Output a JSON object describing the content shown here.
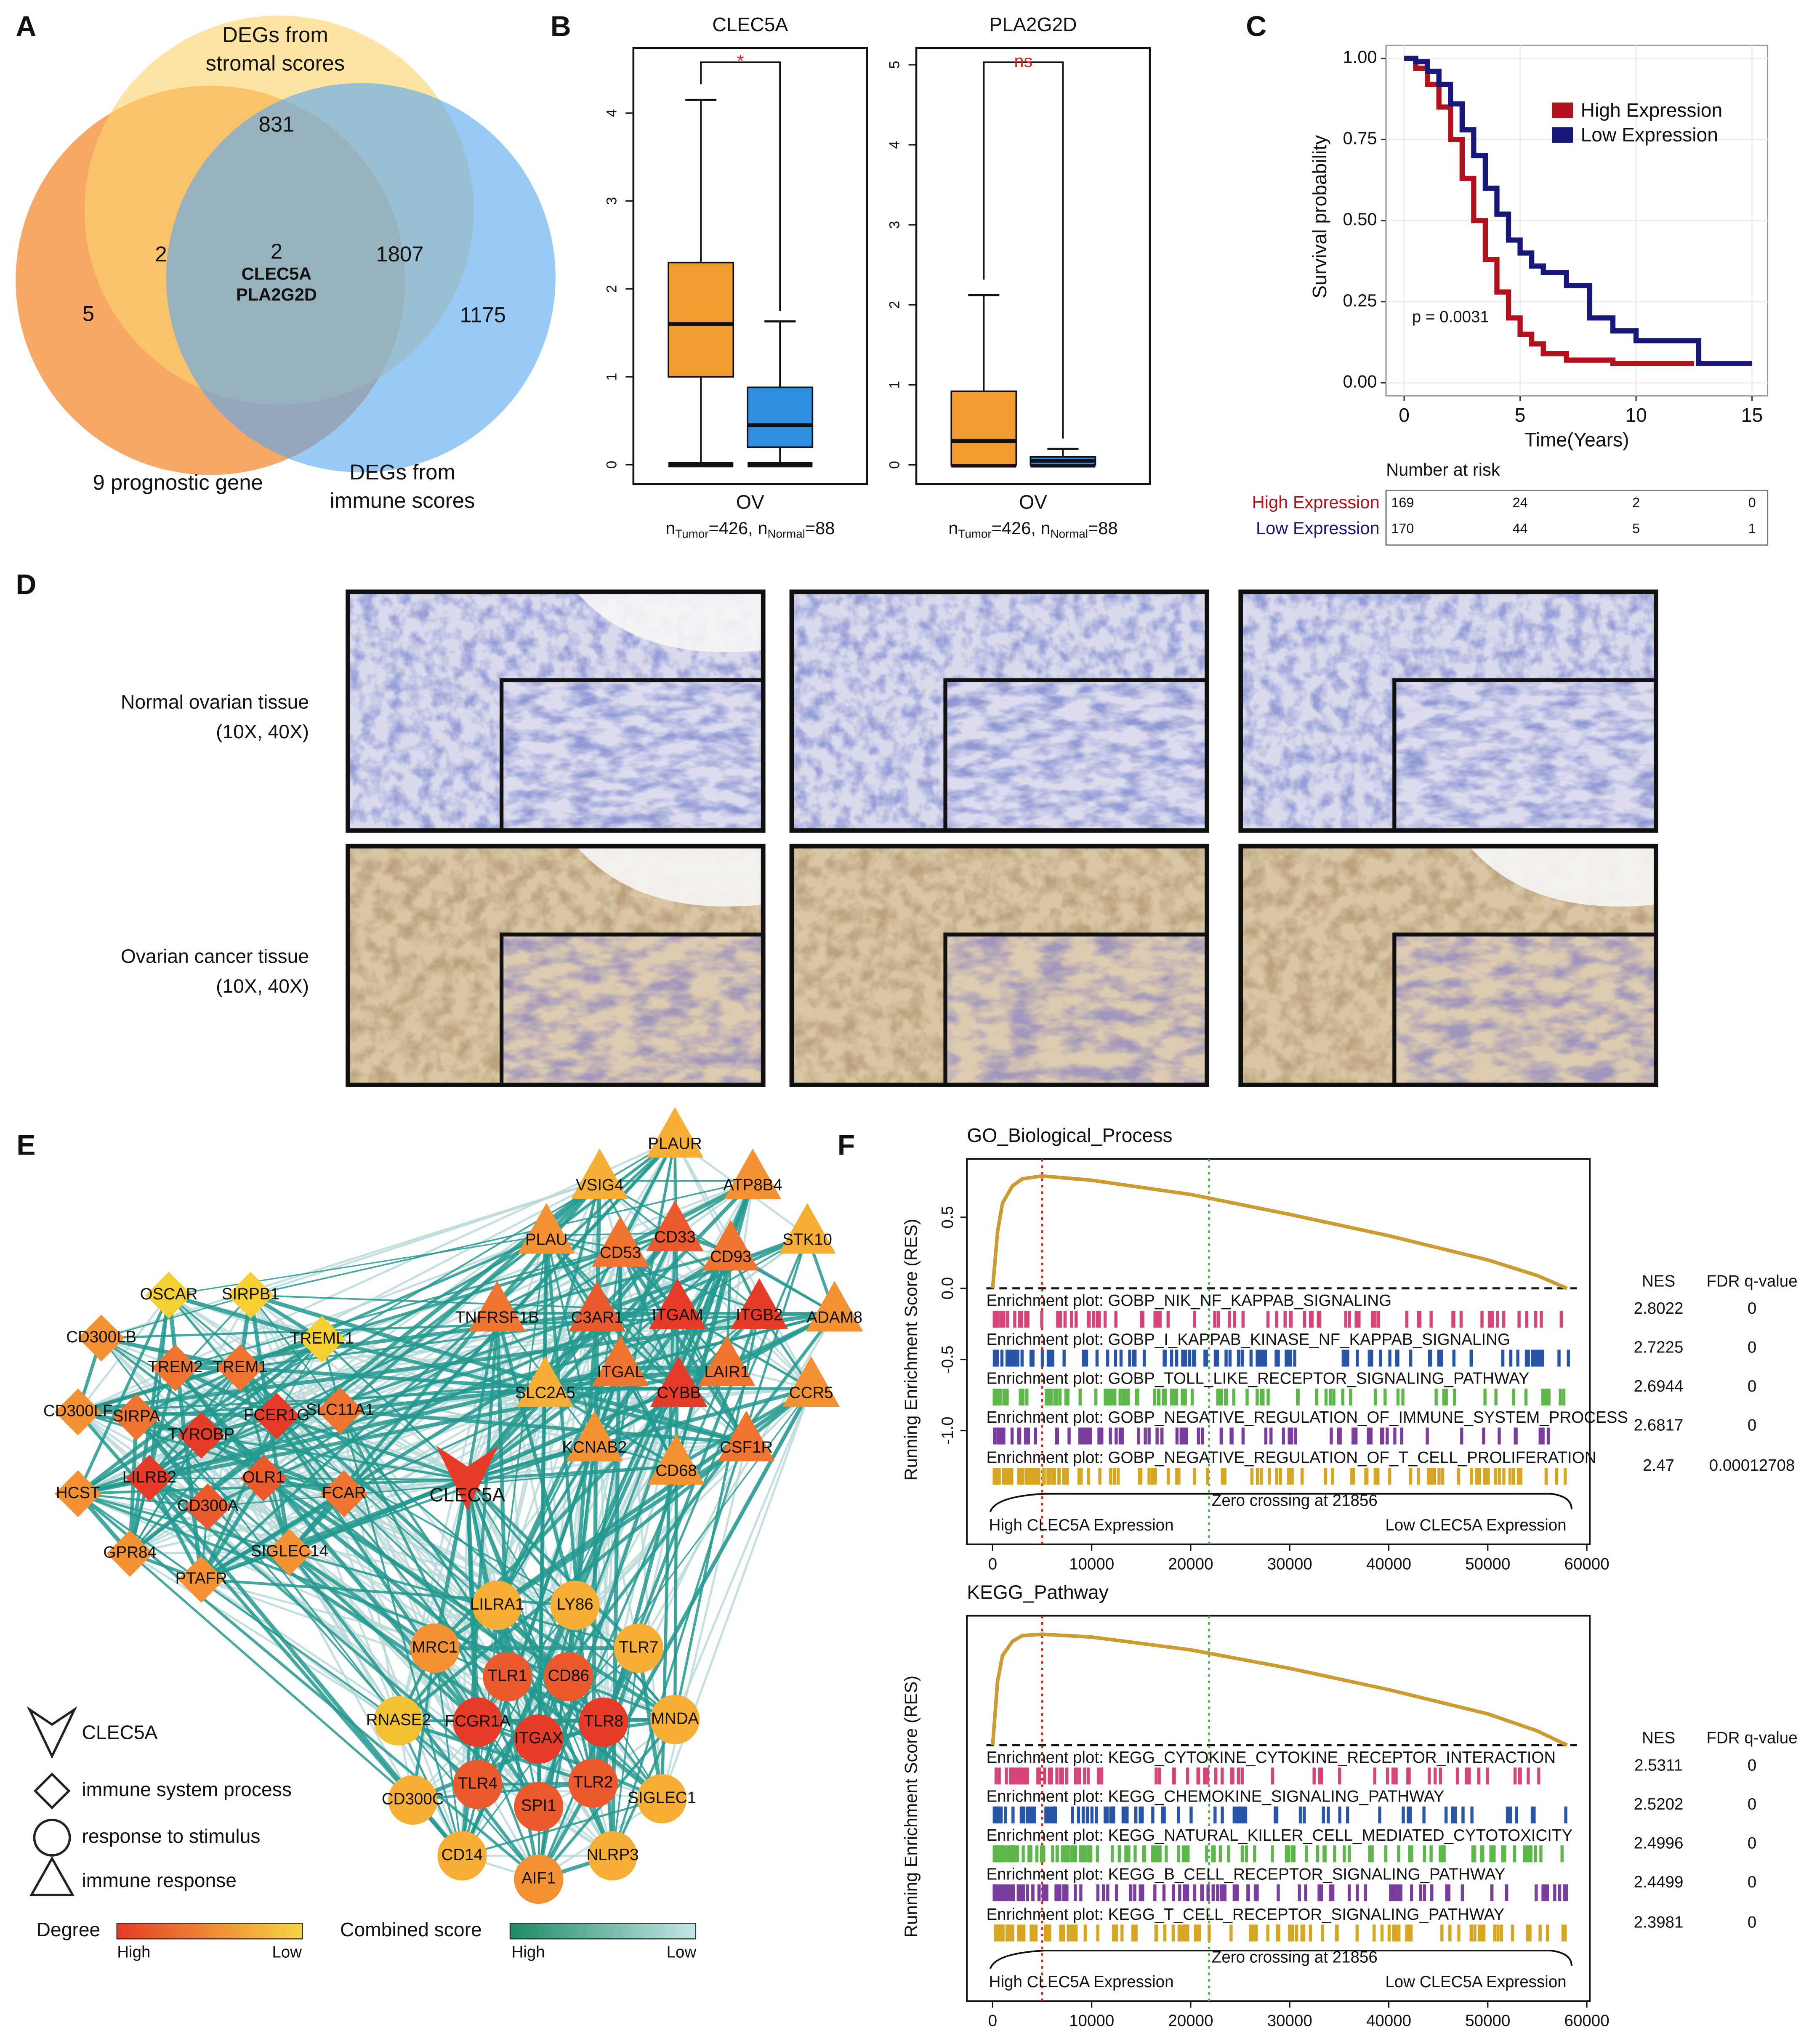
{
  "panel_labels": [
    "A",
    "B",
    "C",
    "D",
    "E",
    "F"
  ],
  "venn": {
    "sets": [
      {
        "label_lines": [
          "9 prognostic gene"
        ],
        "color": "#f7a25e"
      },
      {
        "label_lines": [
          "DEGs from",
          "stromal scores"
        ],
        "color": "#fbd36a"
      },
      {
        "label_lines": [
          "DEGs from",
          "immune scores"
        ],
        "color": "#5aa8ef"
      }
    ],
    "regions": [
      "831",
      "2",
      "2",
      "5",
      "1807",
      "1175"
    ],
    "shared_genes": [
      "CLEC5A",
      "PLA2G2D"
    ]
  },
  "boxplots": [
    {
      "type": "box",
      "title": "CLEC5A",
      "ylim": [
        -0.22,
        4.74
      ],
      "yticks": [
        0,
        1,
        2,
        3,
        4
      ],
      "group": "OV",
      "n_label": [
        "n",
        "Tumor",
        "=426, n",
        "Normal",
        "=88"
      ],
      "significance": "*",
      "boxes": [
        {
          "min": 0,
          "q1": 1.0,
          "median": 1.6,
          "q3": 2.3,
          "max": 4.15,
          "color": "#f29b2e"
        },
        {
          "min": 0,
          "q1": 0.2,
          "median": 0.45,
          "q3": 0.88,
          "max": 1.63,
          "color": "#2f8fe0"
        }
      ]
    },
    {
      "type": "box",
      "title": "PLA2G2D",
      "ylim": [
        -0.24,
        5.21
      ],
      "yticks": [
        0,
        1,
        2,
        3,
        4,
        5
      ],
      "group": "OV",
      "n_label": [
        "n",
        "Tumor",
        "=426, n",
        "Normal",
        "=88"
      ],
      "significance": "ns",
      "boxes": [
        {
          "min": 0,
          "q1": 0,
          "median": 0.3,
          "q3": 0.92,
          "max": 2.12,
          "color": "#f29b2e"
        },
        {
          "min": 0,
          "q1": 0,
          "median": 0.05,
          "q3": 0.1,
          "max": 0.2,
          "color": "#2f8fe0"
        }
      ]
    }
  ],
  "survival": {
    "type": "line",
    "xlabel": "Time(Years)",
    "ylabel": "Survival probability",
    "xlim": [
      -0.78,
      15.67
    ],
    "ylim": [
      -0.04,
      1.04
    ],
    "xticks": [
      0,
      5,
      10,
      15
    ],
    "yticks": [
      {
        "value": 0,
        "label": "0.00"
      },
      {
        "value": 0.25,
        "label": "0.25"
      },
      {
        "value": 0.5,
        "label": "0.50"
      },
      {
        "value": 0.75,
        "label": "0.75"
      },
      {
        "value": 1,
        "label": "1.00"
      }
    ],
    "grid": true,
    "p_label": "p = 0.0031",
    "series": [
      {
        "name": "High Expression",
        "color": "#b3121d",
        "x": [
          0,
          0.5,
          1,
          1.5,
          2,
          2.5,
          3,
          3.5,
          4,
          4.5,
          5,
          5.5,
          6,
          7,
          8,
          9,
          10,
          12.5
        ],
        "y": [
          1,
          0.97,
          0.92,
          0.85,
          0.75,
          0.63,
          0.5,
          0.38,
          0.28,
          0.2,
          0.15,
          0.12,
          0.09,
          0.07,
          0.07,
          0.06,
          0.06,
          0.06
        ]
      },
      {
        "name": "Low Expression",
        "color": "#18187a",
        "x": [
          0,
          0.5,
          1,
          1.5,
          2,
          2.5,
          3,
          3.5,
          4,
          4.5,
          5,
          5.5,
          6,
          7,
          8,
          9,
          10,
          12,
          12.7,
          15
        ],
        "y": [
          1,
          0.99,
          0.96,
          0.92,
          0.86,
          0.78,
          0.7,
          0.6,
          0.52,
          0.44,
          0.4,
          0.36,
          0.34,
          0.3,
          0.2,
          0.16,
          0.13,
          0.13,
          0.06,
          0.06
        ]
      }
    ],
    "risk_table": {
      "title": "Number at risk",
      "rows": [
        [
          169,
          24,
          2,
          0
        ],
        [
          170,
          44,
          5,
          1
        ]
      ]
    }
  },
  "ihc": {
    "rows": [
      {
        "label": "Normal ovarian tissue",
        "magnification": "(10X, 40X)"
      },
      {
        "label": "Ovarian cancer tissue",
        "magnification": "(10X, 40X)"
      }
    ]
  },
  "network": {
    "nodes": [
      {
        "label": "OSCAR",
        "shape": "diamond",
        "color": "#f5d033"
      },
      {
        "label": "SIRPB1",
        "shape": "diamond",
        "color": "#f5d033"
      },
      {
        "label": "TREML1",
        "shape": "diamond",
        "color": "#f5d033"
      },
      {
        "label": "CD300LB",
        "shape": "diamond",
        "color": "#f39133"
      },
      {
        "label": "TREM2",
        "shape": "diamond",
        "color": "#ef7430"
      },
      {
        "label": "TREM1",
        "shape": "diamond",
        "color": "#ef7430"
      },
      {
        "label": "CD300LF",
        "shape": "diamond",
        "color": "#f39133"
      },
      {
        "label": "SIRPA",
        "shape": "diamond",
        "color": "#ef7430"
      },
      {
        "label": "TYROBP",
        "shape": "diamond",
        "color": "#e63b26"
      },
      {
        "label": "FCER1G",
        "shape": "diamond",
        "color": "#e63b26"
      },
      {
        "label": "SLC11A1",
        "shape": "diamond",
        "color": "#ef7430"
      },
      {
        "label": "HCST",
        "shape": "diamond",
        "color": "#f39133"
      },
      {
        "label": "LILRB2",
        "shape": "diamond",
        "color": "#e63b26"
      },
      {
        "label": "OLR1",
        "shape": "diamond",
        "color": "#ea5a2c"
      },
      {
        "label": "CD300A",
        "shape": "diamond",
        "color": "#ea5a2c"
      },
      {
        "label": "FCAR",
        "shape": "diamond",
        "color": "#ef7430"
      },
      {
        "label": "GPR84",
        "shape": "diamond",
        "color": "#f39133"
      },
      {
        "label": "SIGLEC14",
        "shape": "diamond",
        "color": "#f39133"
      },
      {
        "label": "PTAFR",
        "shape": "diamond",
        "color": "#f39133"
      },
      {
        "label": "CLEC5A",
        "shape": "v",
        "color": "#e63b26"
      },
      {
        "label": "PLAUR",
        "shape": "triangle",
        "color": "#f6ae35"
      },
      {
        "label": "VSIG4",
        "shape": "triangle",
        "color": "#f6ae35"
      },
      {
        "label": "ATP8B4",
        "shape": "triangle",
        "color": "#f39133"
      },
      {
        "label": "STK10",
        "shape": "triangle",
        "color": "#f6ae35"
      },
      {
        "label": "PLAU",
        "shape": "triangle",
        "color": "#f39133"
      },
      {
        "label": "CD53",
        "shape": "triangle",
        "color": "#ef7430"
      },
      {
        "label": "CD33",
        "shape": "triangle",
        "color": "#ea5a2c"
      },
      {
        "label": "CD93",
        "shape": "triangle",
        "color": "#ef7430"
      },
      {
        "label": "ADAM8",
        "shape": "triangle",
        "color": "#f39133"
      },
      {
        "label": "TNFRSF1B",
        "shape": "triangle",
        "color": "#ef7430"
      },
      {
        "label": "C3AR1",
        "shape": "triangle",
        "color": "#ea5a2c"
      },
      {
        "label": "ITGAM",
        "shape": "triangle",
        "color": "#e63b26"
      },
      {
        "label": "ITGB2",
        "shape": "triangle",
        "color": "#e63b26"
      },
      {
        "label": "LAIR1",
        "shape": "triangle",
        "color": "#ef7430"
      },
      {
        "label": "ITGAL",
        "shape": "triangle",
        "color": "#ef7430"
      },
      {
        "label": "CCR5",
        "shape": "triangle",
        "color": "#f39133"
      },
      {
        "label": "SLC2A5",
        "shape": "triangle",
        "color": "#f6ae35"
      },
      {
        "label": "CYBB",
        "shape": "triangle",
        "color": "#e63b26"
      },
      {
        "label": "KCNAB2",
        "shape": "triangle",
        "color": "#f39133"
      },
      {
        "label": "CSF1R",
        "shape": "triangle",
        "color": "#ef7430"
      },
      {
        "label": "CD68",
        "shape": "triangle",
        "color": "#f39133"
      },
      {
        "label": "LILRA1",
        "shape": "circle",
        "color": "#f6ae35"
      },
      {
        "label": "LY86",
        "shape": "circle",
        "color": "#f6ae35"
      },
      {
        "label": "TLR7",
        "shape": "circle",
        "color": "#f6ae35"
      },
      {
        "label": "MRC1",
        "shape": "circle",
        "color": "#f39133"
      },
      {
        "label": "TLR1",
        "shape": "circle",
        "color": "#ea5a2c"
      },
      {
        "label": "CD86",
        "shape": "circle",
        "color": "#ea5a2c"
      },
      {
        "label": "RNASE2",
        "shape": "circle",
        "color": "#f3c233"
      },
      {
        "label": "FCGR1A",
        "shape": "circle",
        "color": "#e63b26"
      },
      {
        "label": "ITGAX",
        "shape": "circle",
        "color": "#e63b26"
      },
      {
        "label": "TLR8",
        "shape": "circle",
        "color": "#e63b26"
      },
      {
        "label": "MNDA",
        "shape": "circle",
        "color": "#f6ae35"
      },
      {
        "label": "CD300C",
        "shape": "circle",
        "color": "#f6ae35"
      },
      {
        "label": "TLR4",
        "shape": "circle",
        "color": "#ea5a2c"
      },
      {
        "label": "TLR2",
        "shape": "circle",
        "color": "#ea5a2c"
      },
      {
        "label": "SIGLEC1",
        "shape": "circle",
        "color": "#f6ae35"
      },
      {
        "label": "SPI1",
        "shape": "circle",
        "color": "#ea5a2c"
      },
      {
        "label": "CD14",
        "shape": "circle",
        "color": "#f6ae35"
      },
      {
        "label": "NLRP3",
        "shape": "circle",
        "color": "#f6ae35"
      },
      {
        "label": "AIF1",
        "shape": "circle",
        "color": "#f39133"
      }
    ],
    "legend": {
      "shapes": [
        {
          "shape": "v",
          "label": "CLEC5A"
        },
        {
          "shape": "diamond",
          "label": "immune system process"
        },
        {
          "shape": "circle",
          "label": "response to stimulus"
        },
        {
          "shape": "triangle",
          "label": "immune response"
        }
      ],
      "degree": {
        "title": "Degree",
        "high": "High",
        "low": "Low"
      },
      "combined_score": {
        "title": "Combined score",
        "high": "High",
        "low": "Low"
      }
    }
  },
  "gsea": [
    {
      "type": "line",
      "title": "GO_Biological_Process",
      "ylabel": "Running Enrichment Score (RES)",
      "xlim": [
        -2600,
        60300
      ],
      "ylim": [
        -1.8,
        0.91
      ],
      "xticks": [
        0,
        10000,
        20000,
        30000,
        40000,
        50000,
        60000
      ],
      "yticks": [
        0.5,
        {
          "value": 0,
          "label": "0.0"
        },
        -0.5,
        {
          "value": -1,
          "label": "-1.0"
        }
      ],
      "curve": {
        "x": [
          0,
          500,
          1000,
          2000,
          3000,
          5000,
          10000,
          20000,
          30000,
          40000,
          50000,
          55000,
          58000
        ],
        "y": [
          0,
          0.4,
          0.6,
          0.72,
          0.77,
          0.79,
          0.76,
          0.66,
          0.52,
          0.37,
          0.2,
          0.09,
          0
        ]
      },
      "peak_rank": 5000,
      "zero_crossing": 21856,
      "zero_label": "Zero crossing at 21856",
      "nes_header": "NES",
      "fdr_header": "FDR q-value",
      "high_label": "High CLEC5A Expression",
      "low_label": "Low CLEC5A Expression",
      "sets": [
        {
          "name": "Enrichment plot: GOBP_NIK_NF_KAPPAB_SIGNALING",
          "color": "#d6457a",
          "nes": 2.8022,
          "fdr": 0
        },
        {
          "name": "Enrichment plot: GOBP_I_KAPPAB_KINASE_NF_KAPPAB_SIGNALING",
          "color": "#2855a5",
          "nes": 2.7225,
          "fdr": 0
        },
        {
          "name": "Enrichment plot: GOBP_TOLL_LIKE_RECEPTOR_SIGNALING_PATHWAY",
          "color": "#5db84a",
          "nes": 2.6944,
          "fdr": 0
        },
        {
          "name": "Enrichment plot: GOBP_NEGATIVE_REGULATION_OF_IMMUNE_SYSTEM_PROCESS",
          "color": "#7a3d9e",
          "nes": 2.6817,
          "fdr": 0
        },
        {
          "name": "Enrichment plot: GOBP_NEGATIVE_REGULATION_OF_T_CELL_PROLIFERATION",
          "color": "#d8a520",
          "nes": 2.47,
          "fdr": 0.00012708
        }
      ]
    },
    {
      "type": "line",
      "title": "KEGG_Pathway",
      "ylabel": "Running Enrichment Score (RES)",
      "xlim": [
        -2600,
        60300
      ],
      "ylim": [
        -1.8,
        0.91
      ],
      "xticks": [
        0,
        10000,
        20000,
        30000,
        40000,
        50000,
        60000
      ],
      "curve": {
        "x": [
          0,
          500,
          1000,
          2000,
          3000,
          5000,
          10000,
          20000,
          30000,
          40000,
          50000,
          55000,
          58000
        ],
        "y": [
          0,
          0.45,
          0.63,
          0.73,
          0.77,
          0.78,
          0.76,
          0.67,
          0.54,
          0.39,
          0.22,
          0.1,
          0
        ]
      },
      "peak_rank": 5000,
      "zero_crossing": 21856,
      "zero_label": "Zero crossing at 21856",
      "nes_header": "NES",
      "fdr_header": "FDR q-value",
      "high_label": "High CLEC5A Expression",
      "low_label": "Low CLEC5A Expression",
      "sets": [
        {
          "name": "Enrichment plot: KEGG_CYTOKINE_CYTOKINE_RECEPTOR_INTERACTION",
          "color": "#d6457a",
          "nes": 2.5311,
          "fdr": 0
        },
        {
          "name": "Enrichment plot: KEGG_CHEMOKINE_SIGNALING_PATHWAY",
          "color": "#2855a5",
          "nes": 2.5202,
          "fdr": 0
        },
        {
          "name": "Enrichment plot: KEGG_NATURAL_KILLER_CELL_MEDIATED_CYTOTOXICITY",
          "color": "#5db84a",
          "nes": 2.4996,
          "fdr": 0
        },
        {
          "name": "Enrichment plot: KEGG_B_CELL_RECEPTOR_SIGNALING_PATHWAY",
          "color": "#7a3d9e",
          "nes": 2.4499,
          "fdr": 0
        },
        {
          "name": "Enrichment plot: KEGG_T_CELL_RECEPTOR_SIGNALING_PATHWAY",
          "color": "#d8a520",
          "nes": 2.3981,
          "fdr": 0
        }
      ]
    }
  ]
}
